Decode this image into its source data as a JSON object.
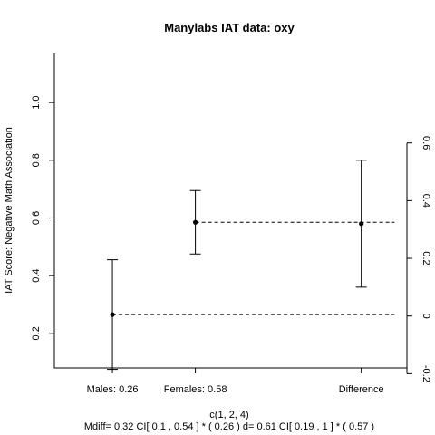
{
  "chart_data": {
    "type": "errorbar",
    "title": "Manylabs IAT data:  oxy",
    "ylabel": "IAT Score: Negative Math Association",
    "xlabel": "c(1, 2, 4)",
    "footer": "Mdiff= 0.32  CI[ 0.1 , 0.54 ] *  ( 0.26 )   d= 0.61 CI[ 0.19 ,  1 ] *  ( 0.57 )",
    "x_range": [
      0.3,
      4.55
    ],
    "left_axis": {
      "range": [
        0.08,
        1.17
      ],
      "ticks": [
        0.2,
        0.4,
        0.6,
        0.8,
        1.0
      ],
      "tick_labels": [
        "0.2",
        "0.4",
        "0.6",
        "0.8",
        "1.0"
      ]
    },
    "right_axis": {
      "offset": 0.26,
      "ticks": [
        -0.2,
        0,
        0.2,
        0.4,
        0.6
      ],
      "tick_labels": [
        "-0.2",
        "0",
        "0.2",
        "0.4",
        "0.6"
      ]
    },
    "x_ticks": [
      {
        "x": 1,
        "label": "Males:  0.26"
      },
      {
        "x": 2,
        "label": "Females:  0.58"
      },
      {
        "x": 4,
        "label": "Difference"
      }
    ],
    "points": [
      {
        "name": "Males",
        "x": 1,
        "y": 0.265,
        "lower": 0.075,
        "upper": 0.455
      },
      {
        "name": "Females",
        "x": 2,
        "y": 0.585,
        "lower": 0.475,
        "upper": 0.695
      },
      {
        "name": "Difference",
        "x": 4,
        "y": 0.32,
        "lower": 0.1,
        "upper": 0.54
      }
    ],
    "reference_lines": [
      {
        "y": 0.265,
        "x_from": 1,
        "x_to": 4.4
      },
      {
        "y": 0.585,
        "x_from": 2,
        "x_to": 4.4
      }
    ]
  }
}
